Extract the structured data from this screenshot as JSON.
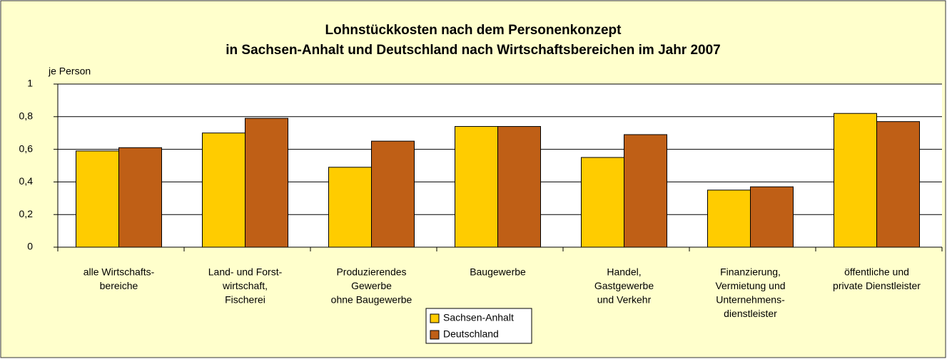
{
  "chart_data": {
    "type": "bar",
    "title": [
      "Lohnstückkosten nach dem Personenkonzept",
      "in Sachsen-Anhalt und Deutschland nach Wirtschaftsbereichen im Jahr 2007"
    ],
    "y_axis_label": "je Person",
    "categories": [
      [
        "alle Wirtschafts-",
        "bereiche"
      ],
      [
        "Land- und Forst-",
        "wirtschaft,",
        "Fischerei"
      ],
      [
        "Produzierendes",
        "Gewerbe",
        "ohne Baugewerbe"
      ],
      [
        "Baugewerbe"
      ],
      [
        "Handel,",
        "Gastgewerbe",
        "und Verkehr"
      ],
      [
        "Finanzierung,",
        "Vermietung und",
        "Unternehmens-",
        "dienstleister"
      ],
      [
        "öffentliche und",
        "private Dienstleister"
      ]
    ],
    "series": [
      {
        "name": "Sachsen-Anhalt",
        "color": "#ffcc00",
        "values": [
          0.59,
          0.7,
          0.49,
          0.74,
          0.55,
          0.35,
          0.82
        ]
      },
      {
        "name": "Deutschland",
        "color": "#bf5f16",
        "values": [
          0.61,
          0.79,
          0.65,
          0.74,
          0.69,
          0.37,
          0.77
        ]
      }
    ],
    "ylim": [
      0,
      1
    ],
    "yticks": [
      0,
      {
        "value": 0.2,
        "label": "0,2"
      },
      {
        "value": 0.4,
        "label": "0,4"
      },
      {
        "value": 0.6,
        "label": "0,6"
      },
      {
        "value": 0.8,
        "label": "0,8"
      },
      1
    ],
    "grid": true
  }
}
